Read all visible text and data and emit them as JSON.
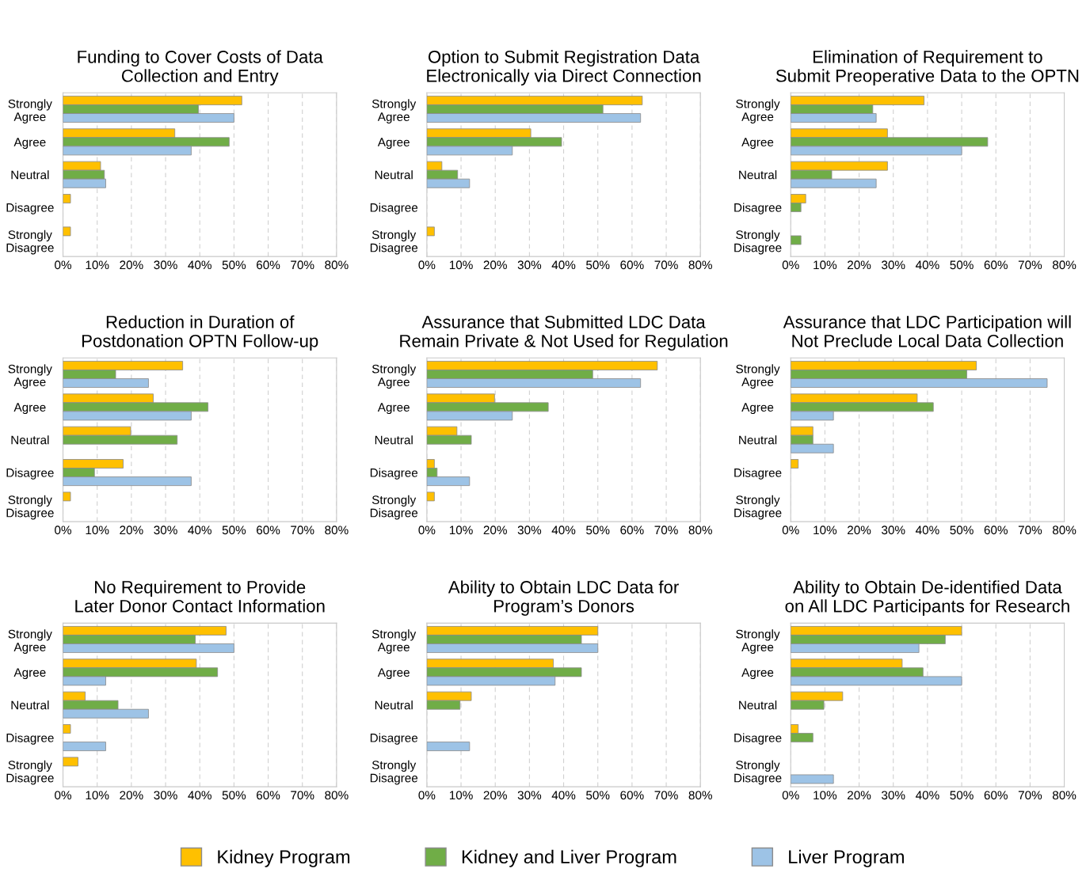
{
  "chart_data": [
    {
      "type": "bar",
      "orientation": "horizontal",
      "title": "Funding to Cover Costs of Data\nCollection and Entry",
      "categories": [
        "Strongly\nAgree",
        "Agree",
        "Neutral",
        "Disagree",
        "Strongly\nDisagree"
      ],
      "series": [
        {
          "name": "Kidney Program",
          "color": "#ffc000",
          "values": [
            52.3,
            32.7,
            11,
            2.2,
            2.2
          ]
        },
        {
          "name": "Kidney and Liver Program",
          "color": "#70ad47",
          "values": [
            39.6,
            48.6,
            12.1,
            null,
            null
          ]
        },
        {
          "name": "Liver Program",
          "color": "#9dc3e6",
          "values": [
            50,
            37.5,
            12.5,
            null,
            null
          ]
        }
      ],
      "xlim": [
        0,
        80
      ],
      "xticks": [
        {
          "value": 0,
          "label": "0%"
        },
        {
          "value": 10,
          "label": "10%"
        },
        {
          "value": 20,
          "label": "20%"
        },
        {
          "value": 30,
          "label": "30%"
        },
        {
          "value": 40,
          "label": "40%"
        },
        {
          "value": 50,
          "label": "50%"
        },
        {
          "value": 60,
          "label": "60%"
        },
        {
          "value": 70,
          "label": "70%"
        },
        {
          "value": 80,
          "label": "80%"
        }
      ],
      "grid": "x",
      "legend": "bottom"
    },
    {
      "type": "bar",
      "orientation": "horizontal",
      "title": "Option to Submit Registration Data\nElectronically via Direct Connection",
      "categories": [
        "Strongly\nAgree",
        "Agree",
        "Neutral",
        "Disagree",
        "Strongly\nDisagree"
      ],
      "series": [
        {
          "name": "Kidney Program",
          "color": "#ffc000",
          "values": [
            63,
            30.4,
            4.4,
            null,
            2.2
          ]
        },
        {
          "name": "Kidney and Liver Program",
          "color": "#70ad47",
          "values": [
            51.5,
            39.4,
            9,
            null,
            null
          ]
        },
        {
          "name": "Liver Program",
          "color": "#9dc3e6",
          "values": [
            62.5,
            25,
            12.5,
            null,
            null
          ]
        }
      ],
      "xlim": [
        0,
        80
      ],
      "xticks": [
        {
          "value": 0,
          "label": "0%"
        },
        {
          "value": 10,
          "label": "10%"
        },
        {
          "value": 20,
          "label": "20%"
        },
        {
          "value": 30,
          "label": "30%"
        },
        {
          "value": 40,
          "label": "40%"
        },
        {
          "value": 50,
          "label": "50%"
        },
        {
          "value": 60,
          "label": "60%"
        },
        {
          "value": 70,
          "label": "70%"
        },
        {
          "value": 80,
          "label": "80%"
        }
      ],
      "grid": "x",
      "legend": "bottom"
    },
    {
      "type": "bar",
      "orientation": "horizontal",
      "title": "Elimination of Requirement to\nSubmit Preoperative Data to the OPTN",
      "categories": [
        "Strongly\nAgree",
        "Agree",
        "Neutral",
        "Disagree",
        "Strongly\nDisagree"
      ],
      "series": [
        {
          "name": "Kidney Program",
          "color": "#ffc000",
          "values": [
            39,
            28.3,
            28.3,
            4.4,
            null
          ]
        },
        {
          "name": "Kidney and Liver Program",
          "color": "#70ad47",
          "values": [
            24,
            57.6,
            12,
            3,
            3
          ]
        },
        {
          "name": "Liver Program",
          "color": "#9dc3e6",
          "values": [
            25,
            50,
            25,
            null,
            null
          ]
        }
      ],
      "xlim": [
        0,
        80
      ],
      "xticks": [
        {
          "value": 0,
          "label": "0%"
        },
        {
          "value": 10,
          "label": "10%"
        },
        {
          "value": 20,
          "label": "20%"
        },
        {
          "value": 30,
          "label": "30%"
        },
        {
          "value": 40,
          "label": "40%"
        },
        {
          "value": 50,
          "label": "50%"
        },
        {
          "value": 60,
          "label": "60%"
        },
        {
          "value": 70,
          "label": "70%"
        },
        {
          "value": 80,
          "label": "80%"
        }
      ],
      "grid": "x",
      "legend": "bottom"
    },
    {
      "type": "bar",
      "orientation": "horizontal",
      "title": "Reduction in Duration of\nPostdonation OPTN Follow-up",
      "categories": [
        "Strongly\nAgree",
        "Agree",
        "Neutral",
        "Disagree",
        "Strongly\nDisagree"
      ],
      "series": [
        {
          "name": "Kidney Program",
          "color": "#ffc000",
          "values": [
            35,
            26.4,
            19.8,
            17.6,
            2.2
          ]
        },
        {
          "name": "Kidney and Liver Program",
          "color": "#70ad47",
          "values": [
            15.4,
            42.4,
            33.4,
            9.2,
            null
          ]
        },
        {
          "name": "Liver Program",
          "color": "#9dc3e6",
          "values": [
            25,
            37.5,
            null,
            37.5,
            null
          ]
        }
      ],
      "xlim": [
        0,
        80
      ],
      "xticks": [
        {
          "value": 0,
          "label": "0%"
        },
        {
          "value": 10,
          "label": "10%"
        },
        {
          "value": 20,
          "label": "20%"
        },
        {
          "value": 30,
          "label": "30%"
        },
        {
          "value": 40,
          "label": "40%"
        },
        {
          "value": 50,
          "label": "50%"
        },
        {
          "value": 60,
          "label": "60%"
        },
        {
          "value": 70,
          "label": "70%"
        },
        {
          "value": 80,
          "label": "80%"
        }
      ],
      "grid": "x",
      "legend": "bottom"
    },
    {
      "type": "bar",
      "orientation": "horizontal",
      "title": "Assurance that Submitted LDC Data\nRemain Private & Not Used for Regulation",
      "categories": [
        "Strongly\nAgree",
        "Agree",
        "Neutral",
        "Disagree",
        "Strongly\nDisagree"
      ],
      "series": [
        {
          "name": "Kidney Program",
          "color": "#ffc000",
          "values": [
            67.4,
            19.8,
            8.8,
            2.2,
            2.2
          ]
        },
        {
          "name": "Kidney and Liver Program",
          "color": "#70ad47",
          "values": [
            48.5,
            35.5,
            13,
            3,
            null
          ]
        },
        {
          "name": "Liver Program",
          "color": "#9dc3e6",
          "values": [
            62.5,
            25,
            null,
            12.5,
            null
          ]
        }
      ],
      "xlim": [
        0,
        80
      ],
      "xticks": [
        {
          "value": 0,
          "label": "0%"
        },
        {
          "value": 10,
          "label": "10%"
        },
        {
          "value": 20,
          "label": "20%"
        },
        {
          "value": 30,
          "label": "30%"
        },
        {
          "value": 40,
          "label": "40%"
        },
        {
          "value": 50,
          "label": "50%"
        },
        {
          "value": 60,
          "label": "60%"
        },
        {
          "value": 70,
          "label": "70%"
        },
        {
          "value": 80,
          "label": "80%"
        }
      ],
      "grid": "x",
      "legend": "bottom"
    },
    {
      "type": "bar",
      "orientation": "horizontal",
      "title": "Assurance that LDC Participation will\nNot Preclude Local Data Collection",
      "categories": [
        "Strongly\nAgree",
        "Agree",
        "Neutral",
        "Disagree",
        "Strongly\nDisagree"
      ],
      "series": [
        {
          "name": "Kidney Program",
          "color": "#ffc000",
          "values": [
            54.3,
            37,
            6.5,
            2.2,
            null
          ]
        },
        {
          "name": "Kidney and Liver Program",
          "color": "#70ad47",
          "values": [
            51.5,
            41.7,
            6.5,
            null,
            null
          ]
        },
        {
          "name": "Liver Program",
          "color": "#9dc3e6",
          "values": [
            75,
            12.5,
            12.5,
            null,
            null
          ]
        }
      ],
      "xlim": [
        0,
        80
      ],
      "xticks": [
        {
          "value": 0,
          "label": "0%"
        },
        {
          "value": 10,
          "label": "10%"
        },
        {
          "value": 20,
          "label": "20%"
        },
        {
          "value": 30,
          "label": "30%"
        },
        {
          "value": 40,
          "label": "40%"
        },
        {
          "value": 50,
          "label": "50%"
        },
        {
          "value": 60,
          "label": "60%"
        },
        {
          "value": 70,
          "label": "70%"
        },
        {
          "value": 80,
          "label": "80%"
        }
      ],
      "grid": "x",
      "legend": "bottom"
    },
    {
      "type": "bar",
      "orientation": "horizontal",
      "title": "No Requirement to Provide\nLater Donor Contact Information",
      "categories": [
        "Strongly\nAgree",
        "Agree",
        "Neutral",
        "Disagree",
        "Strongly\nDisagree"
      ],
      "series": [
        {
          "name": "Kidney Program",
          "color": "#ffc000",
          "values": [
            47.7,
            39,
            6.5,
            2.2,
            4.4
          ]
        },
        {
          "name": "Kidney and Liver Program",
          "color": "#70ad47",
          "values": [
            38.7,
            45.2,
            16.1,
            null,
            null
          ]
        },
        {
          "name": "Liver Program",
          "color": "#9dc3e6",
          "values": [
            50,
            12.5,
            25,
            12.5,
            null
          ]
        }
      ],
      "xlim": [
        0,
        80
      ],
      "xticks": [
        {
          "value": 0,
          "label": "0%"
        },
        {
          "value": 10,
          "label": "10%"
        },
        {
          "value": 20,
          "label": "20%"
        },
        {
          "value": 30,
          "label": "30%"
        },
        {
          "value": 40,
          "label": "40%"
        },
        {
          "value": 50,
          "label": "50%"
        },
        {
          "value": 60,
          "label": "60%"
        },
        {
          "value": 70,
          "label": "70%"
        },
        {
          "value": 80,
          "label": "80%"
        }
      ],
      "grid": "x",
      "legend": "bottom"
    },
    {
      "type": "bar",
      "orientation": "horizontal",
      "title": "Ability to Obtain LDC Data for\nProgram’s Donors",
      "categories": [
        "Strongly\nAgree",
        "Agree",
        "Neutral",
        "Disagree",
        "Strongly\nDisagree"
      ],
      "series": [
        {
          "name": "Kidney Program",
          "color": "#ffc000",
          "values": [
            50,
            37,
            13,
            null,
            null
          ]
        },
        {
          "name": "Kidney and Liver Program",
          "color": "#70ad47",
          "values": [
            45.2,
            45.2,
            9.7,
            null,
            null
          ]
        },
        {
          "name": "Liver Program",
          "color": "#9dc3e6",
          "values": [
            50,
            37.5,
            null,
            12.5,
            null
          ]
        }
      ],
      "xlim": [
        0,
        80
      ],
      "xticks": [
        {
          "value": 0,
          "label": "0%"
        },
        {
          "value": 10,
          "label": "10%"
        },
        {
          "value": 20,
          "label": "20%"
        },
        {
          "value": 30,
          "label": "30%"
        },
        {
          "value": 40,
          "label": "40%"
        },
        {
          "value": 50,
          "label": "50%"
        },
        {
          "value": 60,
          "label": "60%"
        },
        {
          "value": 70,
          "label": "70%"
        },
        {
          "value": 80,
          "label": "80%"
        }
      ],
      "grid": "x",
      "legend": "bottom"
    },
    {
      "type": "bar",
      "orientation": "horizontal",
      "title": "Ability to Obtain De-identified Data\non All LDC Participants for Research",
      "categories": [
        "Strongly\nAgree",
        "Agree",
        "Neutral",
        "Disagree",
        "Strongly\nDisagree"
      ],
      "series": [
        {
          "name": "Kidney Program",
          "color": "#ffc000",
          "values": [
            50,
            32.6,
            15.2,
            2.2,
            null
          ]
        },
        {
          "name": "Kidney and Liver Program",
          "color": "#70ad47",
          "values": [
            45.2,
            38.7,
            9.7,
            6.5,
            null
          ]
        },
        {
          "name": "Liver Program",
          "color": "#9dc3e6",
          "values": [
            37.5,
            50,
            null,
            null,
            12.5
          ]
        }
      ],
      "xlim": [
        0,
        80
      ],
      "xticks": [
        {
          "value": 0,
          "label": "0%"
        },
        {
          "value": 10,
          "label": "10%"
        },
        {
          "value": 20,
          "label": "20%"
        },
        {
          "value": 30,
          "label": "30%"
        },
        {
          "value": 40,
          "label": "40%"
        },
        {
          "value": 50,
          "label": "50%"
        },
        {
          "value": 60,
          "label": "60%"
        },
        {
          "value": 70,
          "label": "70%"
        },
        {
          "value": 80,
          "label": "80%"
        }
      ],
      "grid": "x",
      "legend": "bottom"
    }
  ]
}
